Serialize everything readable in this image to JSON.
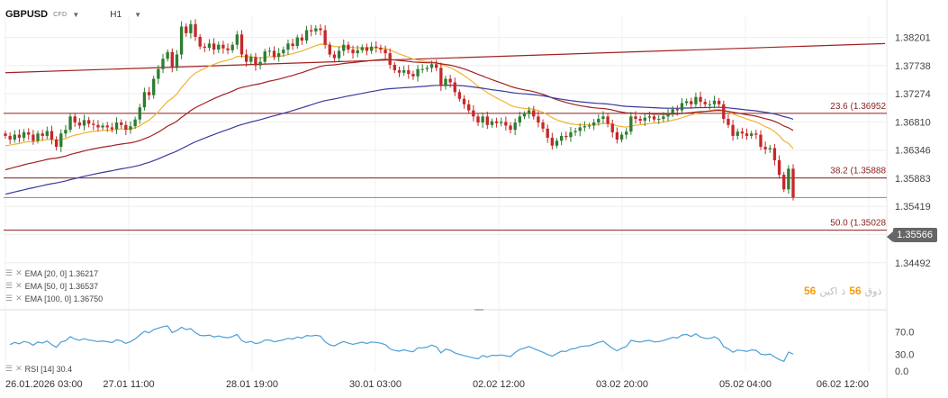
{
  "header": {
    "symbol": "GBPUSD",
    "instrument_type": "CFD",
    "timeframe": "H1"
  },
  "indicators": {
    "ema20": "EMA [20, 0] 1.36217",
    "ema50": "EMA [50, 0] 1.36537",
    "ema100": "EMA [100, 0] 1.36750",
    "rsi": "RSI [14] 30.4"
  },
  "current_price": "1.35566",
  "watermark": {
    "num1": "56",
    "num2": "56",
    "text1": "ذ ",
    "text2": "ذوق",
    "text3": " اكين"
  },
  "colors": {
    "bull": "#2e7d32",
    "bear": "#c62828",
    "ema20": "#f2b233",
    "ema50": "#a31f1f",
    "ema100": "#3a3aa0",
    "trendline": "#a32020",
    "fib": "#8b1e1e",
    "rsi": "#4a9fd8"
  },
  "chart_data": {
    "type": "candlestick",
    "price_axis": {
      "ticks": [
        "1.38201",
        "1.37738",
        "1.37274",
        "1.36810",
        "1.36346",
        "1.35883",
        "1.35419",
        "1.34955",
        "1.34492"
      ],
      "range": [
        1.344,
        1.3855
      ]
    },
    "time_axis": {
      "ticks": [
        "26.01.2026  03:00",
        "27.01  11:00",
        "28.01  19:00",
        "30.01  03:00",
        "02.02  12:00",
        "03.02  20:00",
        "05.02  04:00",
        "06.02  12:00"
      ]
    },
    "fib_levels": [
      {
        "label": "23.6 (1.36952",
        "price": 1.36952
      },
      {
        "label": "38.2 (1.35888",
        "price": 1.35888
      },
      {
        "label": "50.0 (1.35028",
        "price": 1.35028
      }
    ],
    "trendline": {
      "start": {
        "bar": 0,
        "price": 1.3762
      },
      "end": {
        "bar": 166,
        "price": 1.381
      }
    },
    "candles_close": [
      1.3658,
      1.3652,
      1.366,
      1.3655,
      1.3664,
      1.366,
      1.365,
      1.3662,
      1.3658,
      1.3666,
      1.3652,
      1.364,
      1.3662,
      1.3668,
      1.369,
      1.368,
      1.3675,
      1.3684,
      1.3678,
      1.3676,
      1.3672,
      1.3675,
      1.3672,
      1.3669,
      1.368,
      1.3676,
      1.3668,
      1.3674,
      1.3685,
      1.3705,
      1.373,
      1.3725,
      1.3752,
      1.3768,
      1.3785,
      1.3796,
      1.377,
      1.3792,
      1.3838,
      1.3827,
      1.3842,
      1.3821,
      1.3805,
      1.3803,
      1.381,
      1.38,
      1.3808,
      1.3802,
      1.3799,
      1.3808,
      1.3825,
      1.3792,
      1.378,
      1.3788,
      1.3774,
      1.378,
      1.3797,
      1.3798,
      1.3788,
      1.3794,
      1.38,
      1.381,
      1.3806,
      1.382,
      1.3815,
      1.3832,
      1.383,
      1.3835,
      1.3832,
      1.3808,
      1.3792,
      1.3786,
      1.3798,
      1.3808,
      1.38,
      1.3794,
      1.3799,
      1.3804,
      1.3798,
      1.3805,
      1.3803,
      1.38,
      1.3794,
      1.3775,
      1.3766,
      1.3762,
      1.3766,
      1.376,
      1.3756,
      1.3768,
      1.3768,
      1.377,
      1.3776,
      1.377,
      1.374,
      1.3752,
      1.3746,
      1.373,
      1.3719,
      1.371,
      1.37,
      1.369,
      1.368,
      1.369,
      1.3676,
      1.3682,
      1.3679,
      1.3681,
      1.3675,
      1.3668,
      1.368,
      1.369,
      1.3694,
      1.37,
      1.369,
      1.368,
      1.367,
      1.3655,
      1.3642,
      1.365,
      1.3658,
      1.3656,
      1.3664,
      1.3666,
      1.3672,
      1.3674,
      1.3675,
      1.368,
      1.3686,
      1.369,
      1.3678,
      1.3664,
      1.3652,
      1.366,
      1.3665,
      1.369,
      1.3686,
      1.3683,
      1.3688,
      1.369,
      1.3685,
      1.3686,
      1.369,
      1.3695,
      1.3702,
      1.37,
      1.3712,
      1.3715,
      1.371,
      1.3722,
      1.3714,
      1.371,
      1.371,
      1.3716,
      1.371,
      1.3686,
      1.3676,
      1.3658,
      1.3665,
      1.3662,
      1.3658,
      1.3662,
      1.366,
      1.364,
      1.3636,
      1.3638,
      1.3618,
      1.3594,
      1.357,
      1.3604,
      1.3557
    ],
    "rsi": {
      "ticks": [
        "70.0",
        "30.0",
        "0.0"
      ],
      "range": [
        0,
        100
      ],
      "last": 30.4
    }
  }
}
